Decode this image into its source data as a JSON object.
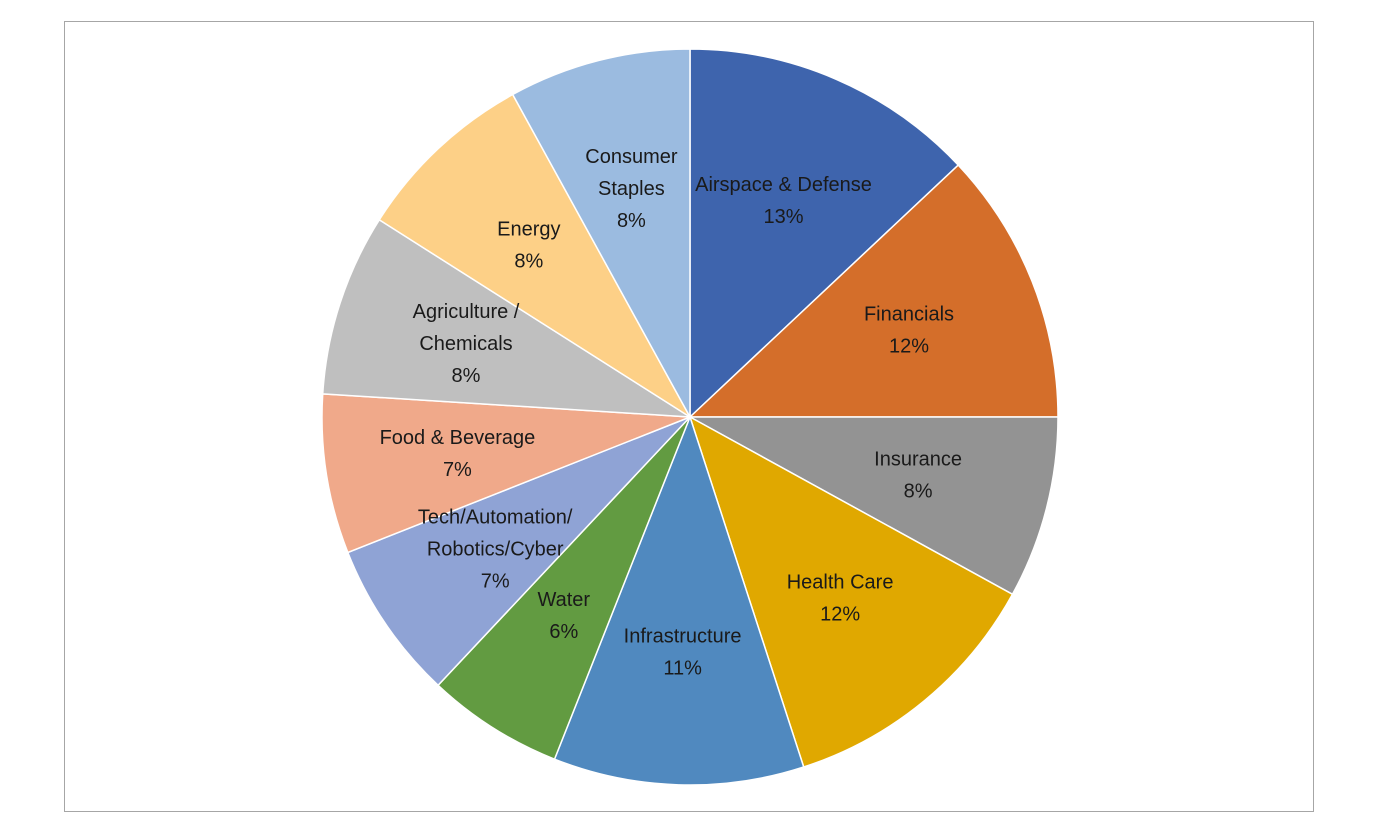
{
  "chart_data": {
    "type": "pie",
    "title": "",
    "start": "12 o'clock, clockwise",
    "slices": [
      {
        "label_lines": [
          "Airspace & Defense"
        ],
        "value_label": "13%",
        "value": 13,
        "color": "#3e64ad"
      },
      {
        "label_lines": [
          "Financials"
        ],
        "value_label": "12%",
        "value": 12,
        "color": "#d46e2a"
      },
      {
        "label_lines": [
          "Insurance"
        ],
        "value_label": "8%",
        "value": 8,
        "color": "#939393"
      },
      {
        "label_lines": [
          "Health Care"
        ],
        "value_label": "12%",
        "value": 12,
        "color": "#e0a800"
      },
      {
        "label_lines": [
          "Infrastructure"
        ],
        "value_label": "11%",
        "value": 11,
        "color": "#5089bf"
      },
      {
        "label_lines": [
          "Water"
        ],
        "value_label": "6%",
        "value": 6,
        "color": "#629b41"
      },
      {
        "label_lines": [
          "Tech/Automation/",
          "Robotics/Cyber"
        ],
        "value_label": "7%",
        "value": 7,
        "color": "#8fa3d5"
      },
      {
        "label_lines": [
          "Food & Beverage"
        ],
        "value_label": "7%",
        "value": 7,
        "color": "#f0a98a"
      },
      {
        "label_lines": [
          "Agriculture /",
          "Chemicals"
        ],
        "value_label": "8%",
        "value": 8,
        "color": "#bfbfbf"
      },
      {
        "label_lines": [
          "Energy"
        ],
        "value_label": "8%",
        "value": 8,
        "color": "#fdd087"
      },
      {
        "label_lines": [
          "Consumer",
          "Staples"
        ],
        "value_label": "8%",
        "value": 8,
        "color": "#9bbbe0"
      }
    ]
  }
}
